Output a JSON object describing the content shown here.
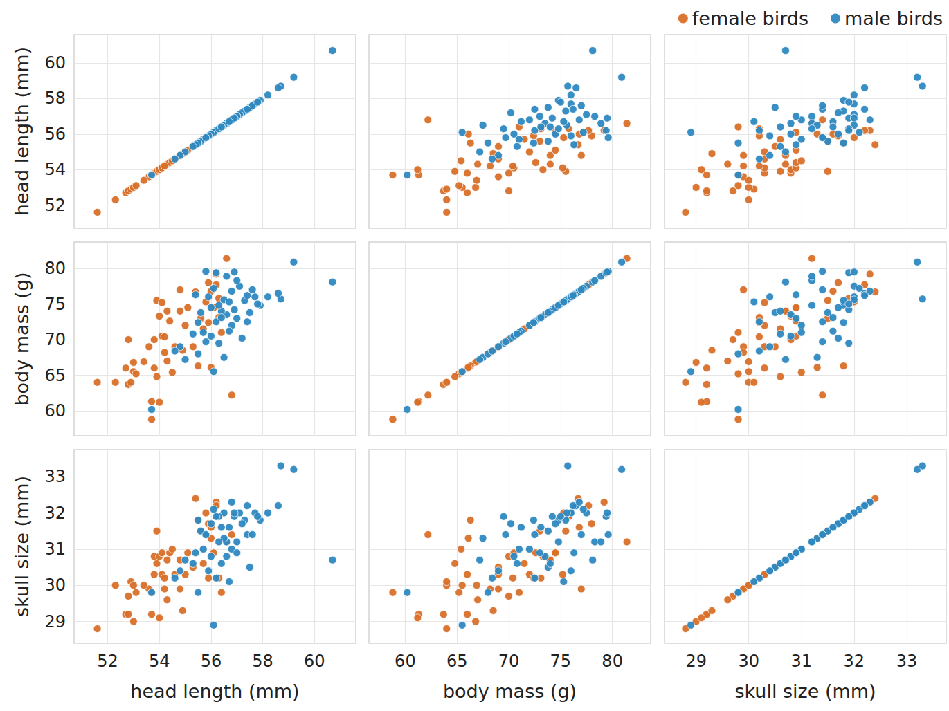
{
  "chart_data": {
    "type": "scatter_matrix",
    "grid": true,
    "legend": "top-right",
    "marker": "circle",
    "variables": [
      {
        "label": "head length (mm)",
        "lim": [
          50.7,
          61.6
        ],
        "ticks": [
          52,
          54,
          56,
          58,
          60
        ]
      },
      {
        "label": "body mass (g)",
        "lim": [
          56.5,
          83.7
        ],
        "ticks": [
          60,
          65,
          70,
          75,
          80
        ]
      },
      {
        "label": "skull size (mm)",
        "lim": [
          28.4,
          33.75
        ],
        "ticks": [
          29,
          30,
          31,
          32,
          33
        ]
      }
    ],
    "series": [
      {
        "name": "female birds",
        "color": "#d9702a",
        "values": [
          [
            51.6,
            64.0,
            28.8
          ],
          [
            52.3,
            64.0,
            30.0
          ],
          [
            52.7,
            66.0,
            29.2
          ],
          [
            52.8,
            70.0,
            29.7
          ],
          [
            52.8,
            63.7,
            29.2
          ],
          [
            52.9,
            64.0,
            30.1
          ],
          [
            53.0,
            65.5,
            30.0
          ],
          [
            53.0,
            66.8,
            29.0
          ],
          [
            53.1,
            65.2,
            29.8
          ],
          [
            53.6,
            69.0,
            29.9
          ],
          [
            53.7,
            58.8,
            29.8
          ],
          [
            53.7,
            61.3,
            29.2
          ],
          [
            53.8,
            66.0,
            30.3
          ],
          [
            53.8,
            70.0,
            30.8
          ],
          [
            53.9,
            75.5,
            31.5
          ],
          [
            53.9,
            64.8,
            30.6
          ],
          [
            54.0,
            73.3,
            30.8
          ],
          [
            54.0,
            61.2,
            29.1
          ],
          [
            54.1,
            75.2,
            30.3
          ],
          [
            54.1,
            70.5,
            30.9
          ],
          [
            54.2,
            68.2,
            29.9
          ],
          [
            54.3,
            74.0,
            30.7
          ],
          [
            54.3,
            67.0,
            29.6
          ],
          [
            54.4,
            72.6,
            30.9
          ],
          [
            54.5,
            65.4,
            31.0
          ],
          [
            54.6,
            69.0,
            30.3
          ],
          [
            54.8,
            77.0,
            29.9
          ],
          [
            54.8,
            74.0,
            30.7
          ],
          [
            54.9,
            68.5,
            29.3
          ],
          [
            55.0,
            72.0,
            30.3
          ],
          [
            55.3,
            69.0,
            30.5
          ],
          [
            55.4,
            76.7,
            32.4
          ],
          [
            55.5,
            66.3,
            31.8
          ],
          [
            55.6,
            73.0,
            31.5
          ],
          [
            55.7,
            71.5,
            30.6
          ],
          [
            55.8,
            75.3,
            32.0
          ],
          [
            55.9,
            78.0,
            31.7
          ],
          [
            55.9,
            72.4,
            30.2
          ],
          [
            56.0,
            66.1,
            31.3
          ],
          [
            56.1,
            74.5,
            30.9
          ],
          [
            56.2,
            79.2,
            32.3
          ],
          [
            56.2,
            77.7,
            32.2
          ],
          [
            56.3,
            73.1,
            30.2
          ],
          [
            56.4,
            71.0,
            29.8
          ],
          [
            56.6,
            81.4,
            31.2
          ],
          [
            56.8,
            62.2,
            31.4
          ],
          [
            56.3,
            75.8,
            31.9
          ],
          [
            54.2,
            70.4,
            30.2
          ],
          [
            55.1,
            74.5,
            30.9
          ],
          [
            56.0,
            76.8,
            31.6
          ],
          [
            53.4,
            66.9,
            30.0
          ]
        ]
      },
      {
        "name": "male birds",
        "color": "#2e88c0",
        "values": [
          [
            60.7,
            78.1,
            30.7
          ],
          [
            59.2,
            80.9,
            33.2
          ],
          [
            58.7,
            75.7,
            33.3
          ],
          [
            58.6,
            76.5,
            32.2
          ],
          [
            58.2,
            76.0,
            32.0
          ],
          [
            57.9,
            74.8,
            31.8
          ],
          [
            57.7,
            76.0,
            32.0
          ],
          [
            57.5,
            73.8,
            30.5
          ],
          [
            57.4,
            72.5,
            31.4
          ],
          [
            57.3,
            75.5,
            31.8
          ],
          [
            57.2,
            70.2,
            31.7
          ],
          [
            57.1,
            77.5,
            32.0
          ],
          [
            57.0,
            78.3,
            31.2
          ],
          [
            56.9,
            74.2,
            31.9
          ],
          [
            56.8,
            72.0,
            31.0
          ],
          [
            56.8,
            76.8,
            32.3
          ],
          [
            56.7,
            71.2,
            31.6
          ],
          [
            56.6,
            78.9,
            31.2
          ],
          [
            56.6,
            73.5,
            30.8
          ],
          [
            56.5,
            67.5,
            31.3
          ],
          [
            56.5,
            75.6,
            32.0
          ],
          [
            56.4,
            74.0,
            30.6
          ],
          [
            56.3,
            69.5,
            31.9
          ],
          [
            56.2,
            79.4,
            31.9
          ],
          [
            56.2,
            72.5,
            30.2
          ],
          [
            56.1,
            65.5,
            28.9
          ],
          [
            56.1,
            77.2,
            32.1
          ],
          [
            56.0,
            74.5,
            31.7
          ],
          [
            56.0,
            70.5,
            30.8
          ],
          [
            55.9,
            76.0,
            30.4
          ],
          [
            55.8,
            79.6,
            31.4
          ],
          [
            55.7,
            71.0,
            31.0
          ],
          [
            55.6,
            73.8,
            31.5
          ],
          [
            55.5,
            68.0,
            29.8
          ],
          [
            55.5,
            72.4,
            31.8
          ],
          [
            55.4,
            76.3,
            30.9
          ],
          [
            55.3,
            70.8,
            30.6
          ],
          [
            55.0,
            67.2,
            30.7
          ],
          [
            54.8,
            69.0,
            30.4
          ],
          [
            54.6,
            68.4,
            30.2
          ],
          [
            53.7,
            60.2,
            29.8
          ],
          [
            57.6,
            77.0,
            31.4
          ],
          [
            57.0,
            73.0,
            30.9
          ],
          [
            56.9,
            79.5,
            32.0
          ],
          [
            57.8,
            75.0,
            31.9
          ],
          [
            56.3,
            74.8,
            31.2
          ],
          [
            56.7,
            75.3,
            30.1
          ],
          [
            57.4,
            76.2,
            32.2
          ],
          [
            55.8,
            69.7,
            31.4
          ],
          [
            56.4,
            73.1,
            31.6
          ]
        ]
      }
    ]
  }
}
